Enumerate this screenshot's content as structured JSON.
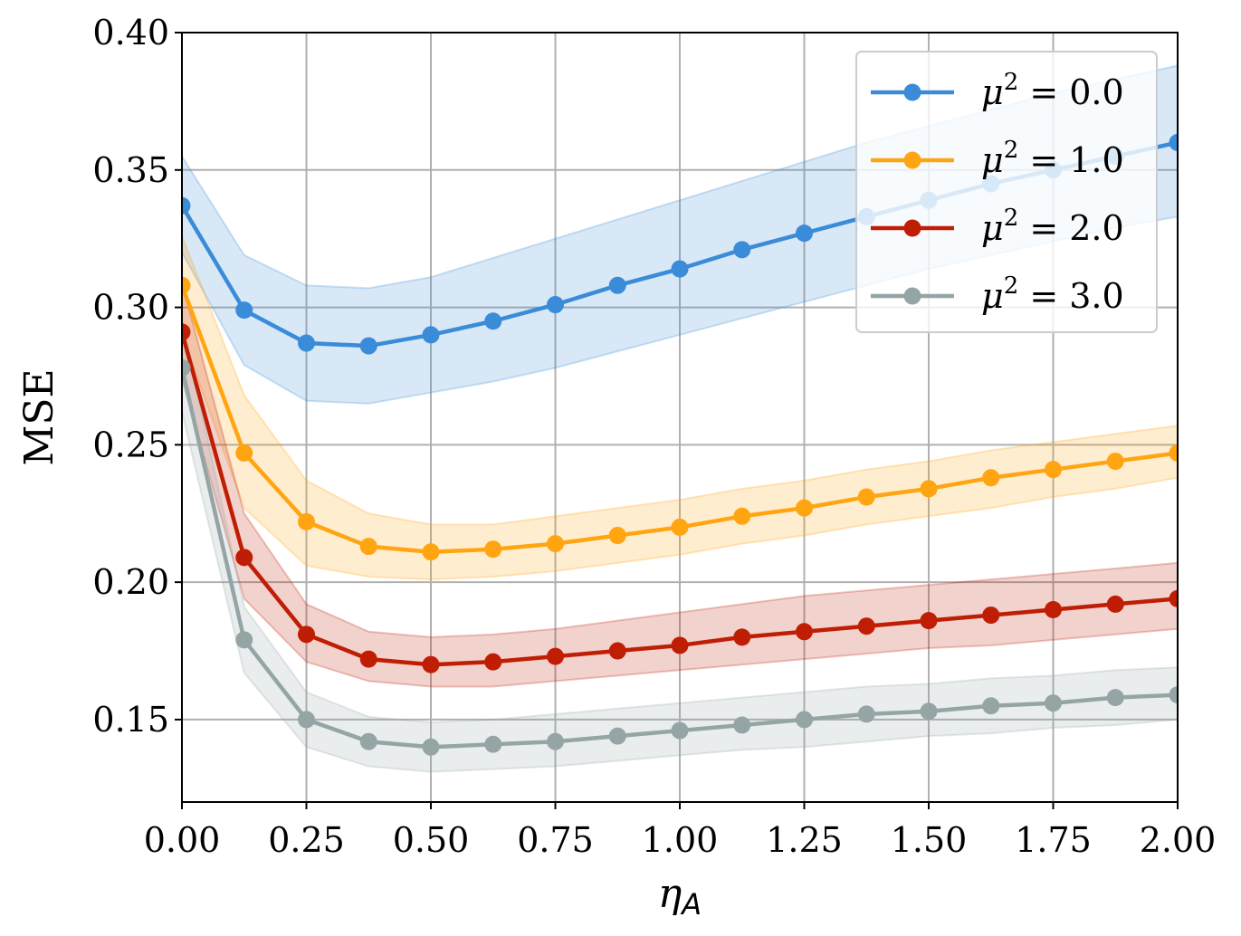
{
  "chart_data": {
    "type": "line",
    "xlabel": "η",
    "xlabel_subscript": "A",
    "ylabel": "MSE",
    "xlim": [
      0.0,
      2.0
    ],
    "ylim": [
      0.12,
      0.4
    ],
    "grid": true,
    "legend_position": "top-right",
    "x_ticks": [
      "0.00",
      "0.25",
      "0.50",
      "0.75",
      "1.00",
      "1.25",
      "1.50",
      "1.75",
      "2.00"
    ],
    "y_ticks": [
      "0.15",
      "0.20",
      "0.25",
      "0.30",
      "0.35",
      "0.40"
    ],
    "x": [
      0.0,
      0.125,
      0.25,
      0.375,
      0.5,
      0.625,
      0.75,
      0.875,
      1.0,
      1.125,
      1.25,
      1.375,
      1.5,
      1.625,
      1.75,
      1.875,
      2.0
    ],
    "series": [
      {
        "name": "μ² = 0.0",
        "legend_mu": "μ",
        "legend_rest": " = 0.0",
        "color": "#3a8bd8",
        "values": [
          0.337,
          0.299,
          0.287,
          0.286,
          0.29,
          0.295,
          0.301,
          0.308,
          0.314,
          0.321,
          0.327,
          0.333,
          0.339,
          0.345,
          0.35,
          0.355,
          0.36
        ],
        "band_upper": [
          0.355,
          0.319,
          0.308,
          0.307,
          0.311,
          0.318,
          0.325,
          0.332,
          0.339,
          0.346,
          0.353,
          0.36,
          0.366,
          0.372,
          0.378,
          0.383,
          0.388
        ],
        "band_lower": [
          0.32,
          0.279,
          0.266,
          0.265,
          0.269,
          0.273,
          0.278,
          0.284,
          0.29,
          0.296,
          0.302,
          0.308,
          0.314,
          0.319,
          0.324,
          0.329,
          0.333
        ]
      },
      {
        "name": "μ² = 1.0",
        "legend_mu": "μ",
        "legend_rest": " = 1.0",
        "color": "#ffa511",
        "values": [
          0.308,
          0.247,
          0.222,
          0.213,
          0.211,
          0.212,
          0.214,
          0.217,
          0.22,
          0.224,
          0.227,
          0.231,
          0.234,
          0.238,
          0.241,
          0.244,
          0.247
        ],
        "band_upper": [
          0.326,
          0.268,
          0.237,
          0.225,
          0.221,
          0.221,
          0.224,
          0.227,
          0.23,
          0.234,
          0.237,
          0.241,
          0.244,
          0.248,
          0.251,
          0.254,
          0.257
        ],
        "band_lower": [
          0.29,
          0.227,
          0.206,
          0.202,
          0.201,
          0.202,
          0.204,
          0.207,
          0.21,
          0.214,
          0.217,
          0.221,
          0.224,
          0.227,
          0.231,
          0.234,
          0.238
        ]
      },
      {
        "name": "μ² = 2.0",
        "legend_mu": "μ",
        "legend_rest": " = 2.0",
        "color": "#c01d05",
        "values": [
          0.291,
          0.209,
          0.181,
          0.172,
          0.17,
          0.171,
          0.173,
          0.175,
          0.177,
          0.18,
          0.182,
          0.184,
          0.186,
          0.188,
          0.19,
          0.192,
          0.194
        ],
        "band_upper": [
          0.309,
          0.225,
          0.192,
          0.182,
          0.18,
          0.181,
          0.183,
          0.186,
          0.189,
          0.192,
          0.195,
          0.197,
          0.199,
          0.201,
          0.203,
          0.205,
          0.207
        ],
        "band_lower": [
          0.274,
          0.194,
          0.171,
          0.164,
          0.162,
          0.162,
          0.164,
          0.166,
          0.168,
          0.17,
          0.172,
          0.174,
          0.176,
          0.177,
          0.179,
          0.181,
          0.183
        ]
      },
      {
        "name": "μ² = 3.0",
        "legend_mu": "μ",
        "legend_rest": " = 3.0",
        "color": "#95a5a6",
        "values": [
          0.278,
          0.179,
          0.15,
          0.142,
          0.14,
          0.141,
          0.142,
          0.144,
          0.146,
          0.148,
          0.15,
          0.152,
          0.153,
          0.155,
          0.156,
          0.158,
          0.159
        ],
        "band_upper": [
          0.295,
          0.191,
          0.16,
          0.151,
          0.149,
          0.15,
          0.152,
          0.154,
          0.156,
          0.158,
          0.16,
          0.162,
          0.163,
          0.165,
          0.166,
          0.168,
          0.169
        ],
        "band_lower": [
          0.262,
          0.167,
          0.14,
          0.133,
          0.131,
          0.132,
          0.133,
          0.135,
          0.137,
          0.139,
          0.14,
          0.142,
          0.144,
          0.145,
          0.147,
          0.148,
          0.15
        ]
      }
    ]
  }
}
